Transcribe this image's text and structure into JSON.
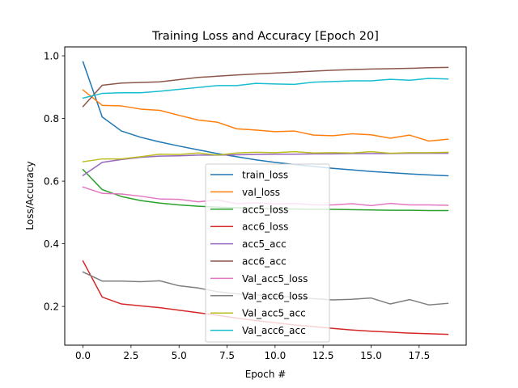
{
  "chart_data": {
    "type": "line",
    "title": "Training Loss and Accuracy [Epoch 20]",
    "xlabel": "Epoch #",
    "ylabel": "Loss/Accuracy",
    "xlim": [
      -0.95,
      19.95
    ],
    "ylim": [
      0.0765,
      1.0285
    ],
    "x_ticks": [
      0,
      2.5,
      5,
      7.5,
      10,
      12.5,
      15,
      17.5
    ],
    "x_tick_labels": [
      "0.0",
      "2.5",
      "5.0",
      "7.5",
      "10.0",
      "12.5",
      "15.0",
      "17.5"
    ],
    "y_ticks": [
      0.2,
      0.4,
      0.6,
      0.8,
      1.0
    ],
    "y_tick_labels": [
      "0.2",
      "0.4",
      "0.6",
      "0.8",
      "1.0"
    ],
    "grid": false,
    "legend_position": "center",
    "x": [
      0,
      1,
      2,
      3,
      4,
      5,
      6,
      7,
      8,
      9,
      10,
      11,
      12,
      13,
      14,
      15,
      16,
      17,
      18,
      19
    ],
    "series": [
      {
        "name": "train_loss",
        "color": "#1f77b4",
        "values": [
          0.981,
          0.805,
          0.76,
          0.74,
          0.725,
          0.712,
          0.7,
          0.688,
          0.678,
          0.668,
          0.66,
          0.653,
          0.647,
          0.641,
          0.636,
          0.631,
          0.627,
          0.623,
          0.62,
          0.617
        ]
      },
      {
        "name": "val_loss",
        "color": "#ff7f0e",
        "values": [
          0.891,
          0.842,
          0.84,
          0.83,
          0.826,
          0.81,
          0.795,
          0.788,
          0.767,
          0.763,
          0.758,
          0.76,
          0.747,
          0.745,
          0.751,
          0.748,
          0.737,
          0.747,
          0.728,
          0.734
        ]
      },
      {
        "name": "acc5_loss",
        "color": "#2ca02c",
        "values": [
          0.637,
          0.573,
          0.551,
          0.538,
          0.53,
          0.524,
          0.52,
          0.517,
          0.515,
          0.513,
          0.512,
          0.511,
          0.51,
          0.51,
          0.509,
          0.508,
          0.507,
          0.507,
          0.506,
          0.506
        ]
      },
      {
        "name": "acc6_loss",
        "color": "#d62728",
        "values": [
          0.345,
          0.23,
          0.208,
          0.202,
          0.196,
          0.188,
          0.18,
          0.172,
          0.163,
          0.155,
          0.148,
          0.141,
          0.136,
          0.13,
          0.125,
          0.121,
          0.118,
          0.115,
          0.113,
          0.111
        ]
      },
      {
        "name": "acc5_acc",
        "color": "#9467bd",
        "values": [
          0.618,
          0.66,
          0.669,
          0.676,
          0.68,
          0.681,
          0.683,
          0.683,
          0.684,
          0.685,
          0.686,
          0.686,
          0.687,
          0.687,
          0.688,
          0.688,
          0.688,
          0.689,
          0.689,
          0.689
        ]
      },
      {
        "name": "acc6_acc",
        "color": "#8c564b",
        "values": [
          0.838,
          0.906,
          0.913,
          0.915,
          0.917,
          0.924,
          0.931,
          0.935,
          0.939,
          0.942,
          0.945,
          0.948,
          0.951,
          0.954,
          0.956,
          0.958,
          0.959,
          0.96,
          0.962,
          0.963
        ]
      },
      {
        "name": "Val_acc5_loss",
        "color": "#e377c2",
        "values": [
          0.581,
          0.561,
          0.559,
          0.552,
          0.543,
          0.542,
          0.534,
          0.54,
          0.528,
          0.531,
          0.527,
          0.529,
          0.524,
          0.524,
          0.528,
          0.522,
          0.529,
          0.524,
          0.524,
          0.523
        ]
      },
      {
        "name": "Val_acc6_loss",
        "color": "#7f7f7f",
        "values": [
          0.31,
          0.281,
          0.281,
          0.279,
          0.282,
          0.266,
          0.259,
          0.247,
          0.24,
          0.237,
          0.233,
          0.23,
          0.225,
          0.221,
          0.223,
          0.227,
          0.208,
          0.222,
          0.205,
          0.21
        ]
      },
      {
        "name": "Val_acc5_acc",
        "color": "#bcbd22",
        "values": [
          0.662,
          0.671,
          0.671,
          0.678,
          0.686,
          0.685,
          0.69,
          0.683,
          0.69,
          0.692,
          0.691,
          0.694,
          0.69,
          0.691,
          0.69,
          0.694,
          0.689,
          0.691,
          0.691,
          0.692
        ]
      },
      {
        "name": "Val_acc6_acc",
        "color": "#17becf",
        "values": [
          0.865,
          0.88,
          0.882,
          0.882,
          0.887,
          0.893,
          0.899,
          0.905,
          0.905,
          0.912,
          0.91,
          0.909,
          0.916,
          0.918,
          0.92,
          0.92,
          0.925,
          0.922,
          0.928,
          0.926
        ]
      }
    ]
  }
}
